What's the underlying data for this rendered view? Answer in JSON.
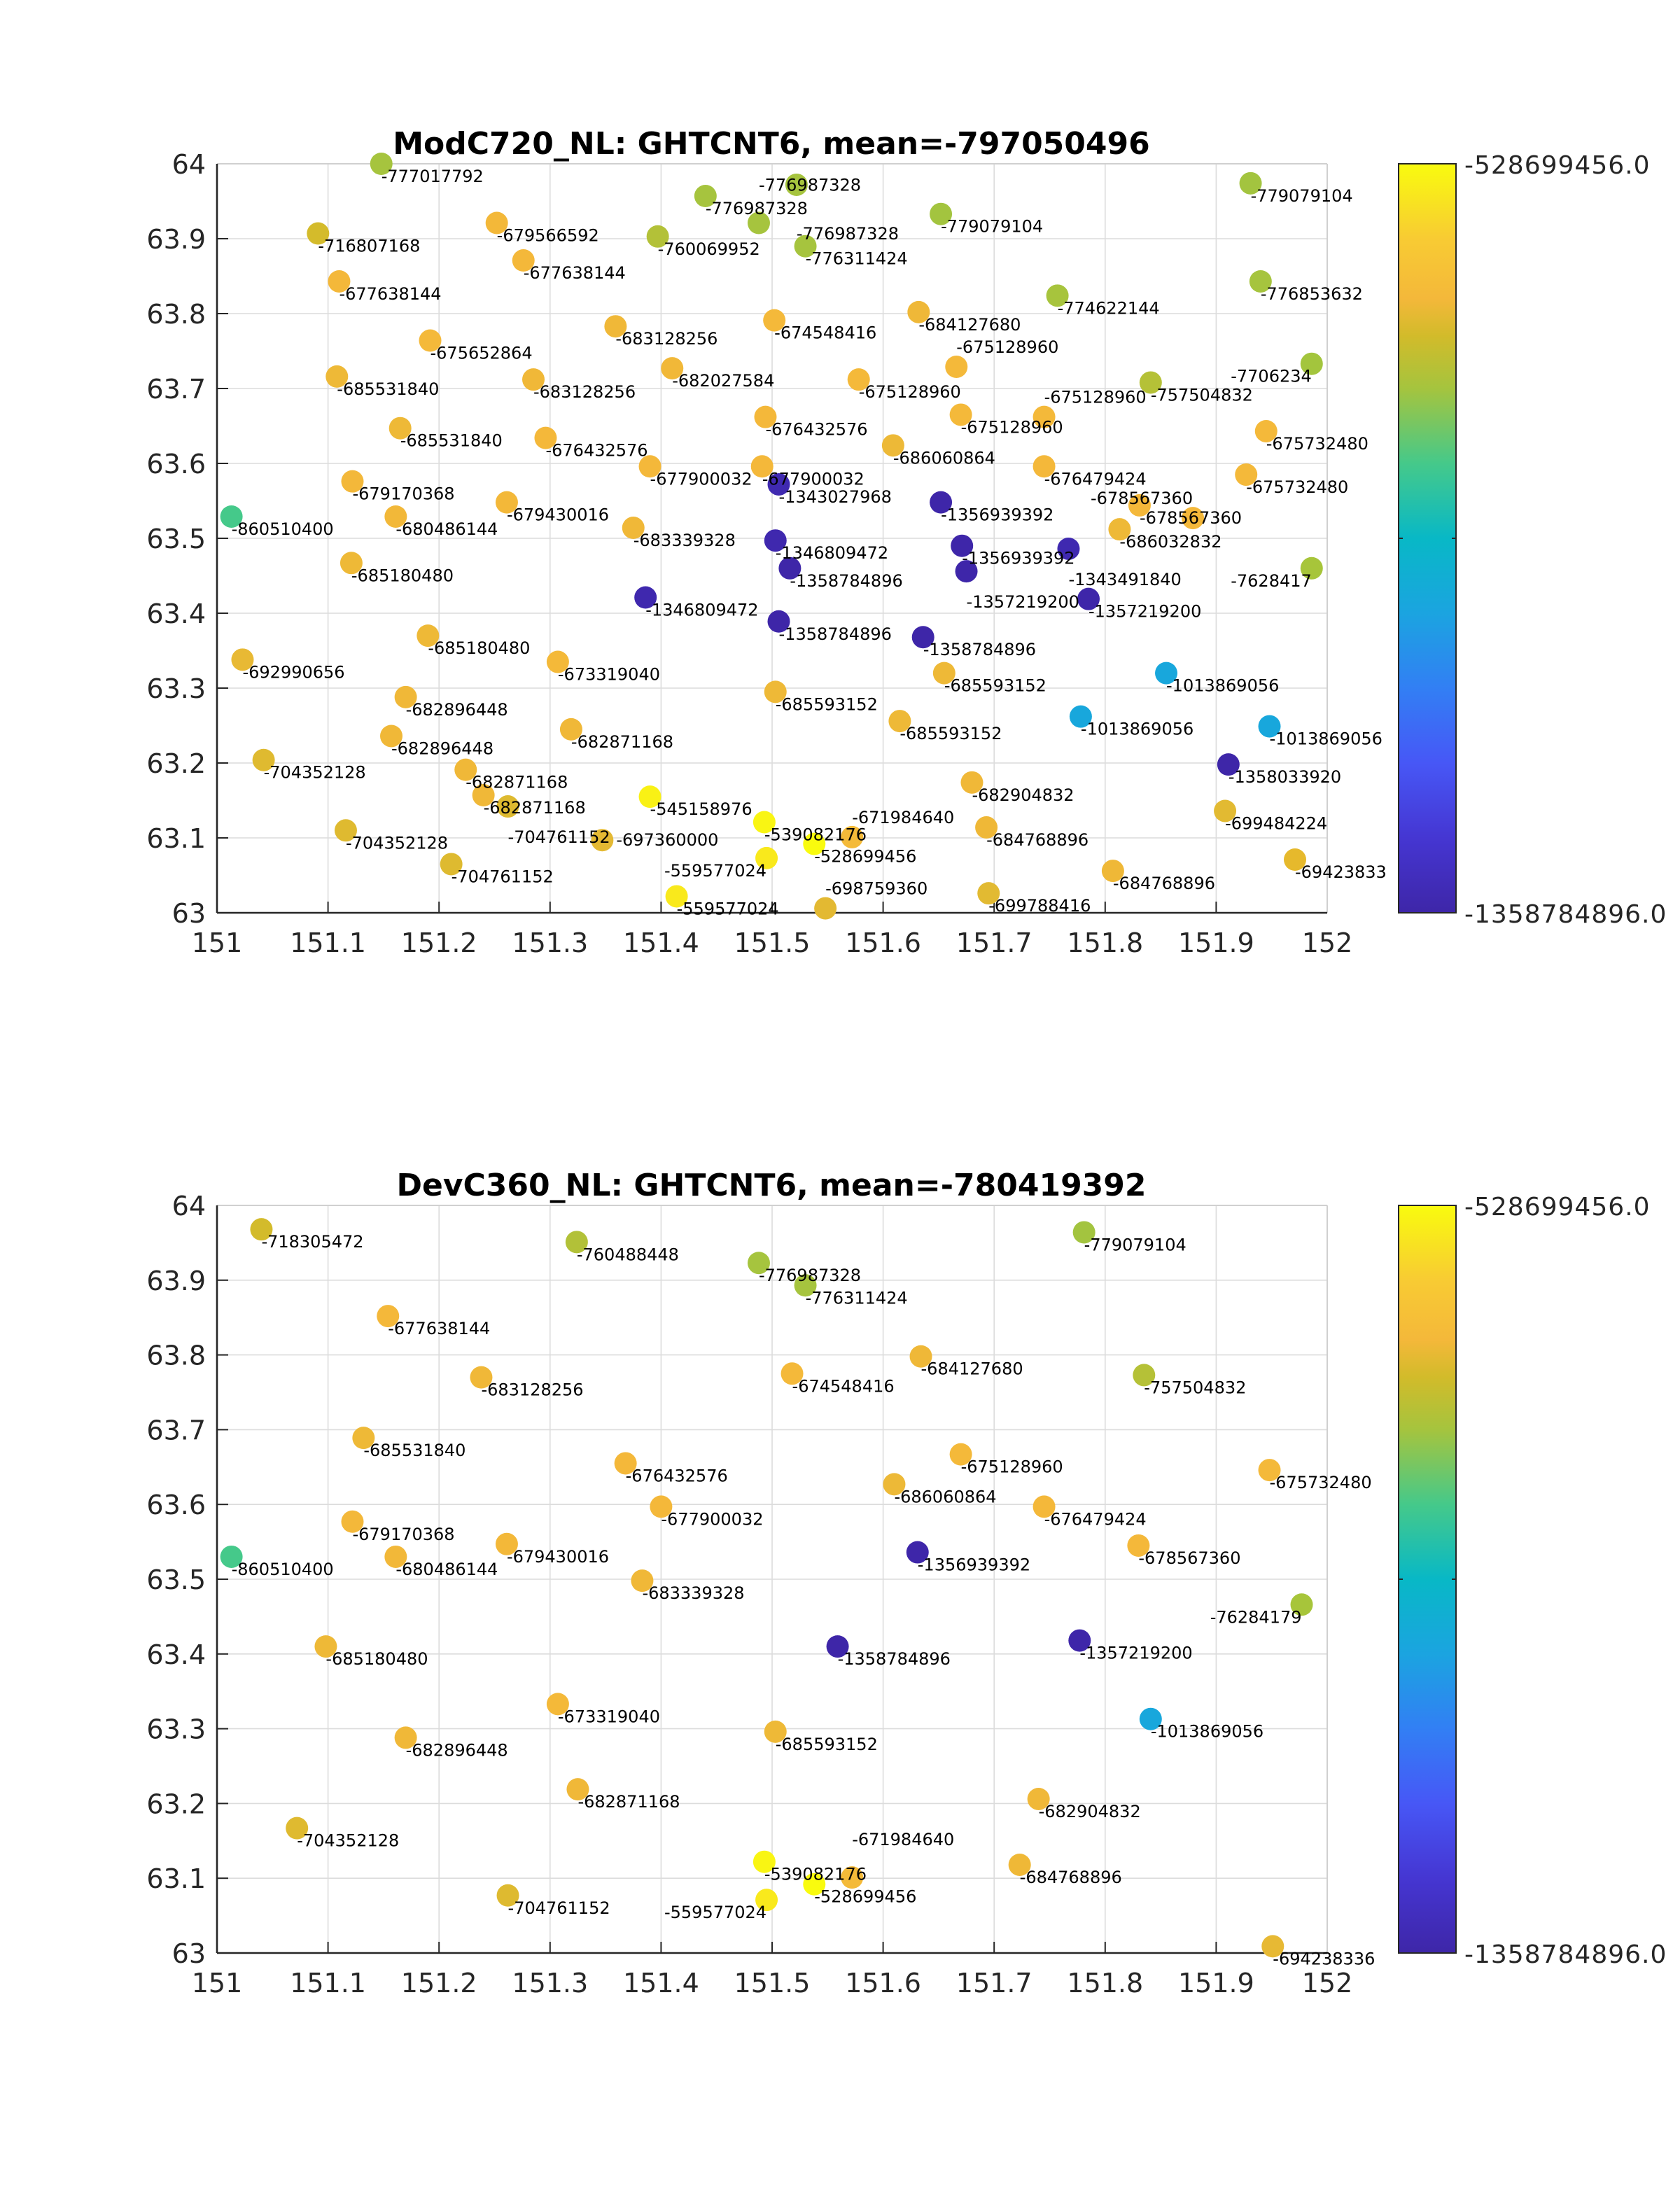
{
  "chart_data": [
    {
      "type": "scatter",
      "title": "ModC720_NL: GHTCNT6,  mean=-797050496",
      "xlim": [
        151,
        152
      ],
      "ylim": [
        63,
        64
      ],
      "xticks": [
        "151",
        "151.1",
        "151.2",
        "151.3",
        "151.4",
        "151.5",
        "151.6",
        "151.7",
        "151.8",
        "151.9",
        "152"
      ],
      "yticks": [
        "63",
        "63.1",
        "63.2",
        "63.3",
        "63.4",
        "63.5",
        "63.6",
        "63.7",
        "63.8",
        "63.9",
        "64"
      ],
      "grid": true,
      "colormap": "parula",
      "colorbar": {
        "min": -1358784896,
        "max": -528699456,
        "min_label": "-1358784896.0",
        "max_label": "-528699456.0"
      },
      "points": [
        {
          "x": 151.148,
          "y": 64.0,
          "value": -777017792,
          "label": "-777017792"
        },
        {
          "x": 151.091,
          "y": 63.907,
          "value": -716807168,
          "label": "-716807168"
        },
        {
          "x": 151.11,
          "y": 63.843,
          "value": -677638144,
          "label": "-677638144"
        },
        {
          "x": 151.252,
          "y": 63.921,
          "value": -679566592,
          "label": "-679566592"
        },
        {
          "x": 151.276,
          "y": 63.871,
          "value": -677638144,
          "label": "-677638144"
        },
        {
          "x": 151.397,
          "y": 63.903,
          "value": -760069952,
          "label": "-760069952"
        },
        {
          "x": 151.44,
          "y": 63.957,
          "value": -776987328,
          "label": "-776987328"
        },
        {
          "x": 151.488,
          "y": 63.921,
          "value": -776987328,
          "label": "-776987328"
        },
        {
          "x": 151.522,
          "y": 63.972,
          "value": -776987328,
          "label": "-776987328"
        },
        {
          "x": 151.53,
          "y": 63.89,
          "value": -776311424,
          "label": "-776311424"
        },
        {
          "x": 151.652,
          "y": 63.933,
          "value": -779079104,
          "label": "-779079104"
        },
        {
          "x": 151.931,
          "y": 63.974,
          "value": -779079104,
          "label": "-779079104"
        },
        {
          "x": 151.94,
          "y": 63.843,
          "value": -776853632,
          "label": "-776853632"
        },
        {
          "x": 151.757,
          "y": 63.824,
          "value": -774622144,
          "label": "-774622144"
        },
        {
          "x": 151.192,
          "y": 63.764,
          "value": -675652864,
          "label": "-675652864"
        },
        {
          "x": 151.359,
          "y": 63.783,
          "value": -683128256,
          "label": "-683128256"
        },
        {
          "x": 151.502,
          "y": 63.791,
          "value": -674548416,
          "label": "-674548416"
        },
        {
          "x": 151.632,
          "y": 63.802,
          "value": -684127680,
          "label": "-684127680"
        },
        {
          "x": 151.108,
          "y": 63.716,
          "value": -685531840,
          "label": "-685531840"
        },
        {
          "x": 151.285,
          "y": 63.712,
          "value": -683128256,
          "label": "-683128256"
        },
        {
          "x": 151.41,
          "y": 63.727,
          "value": -682027584,
          "label": "-682027584"
        },
        {
          "x": 151.578,
          "y": 63.712,
          "value": -675128960,
          "label": "-675128960"
        },
        {
          "x": 151.666,
          "y": 63.729,
          "value": -675128960,
          "label": "-675128960"
        },
        {
          "x": 151.841,
          "y": 63.708,
          "value": -757504832,
          "label": "-757504832"
        },
        {
          "x": 151.986,
          "y": 63.733,
          "value": null,
          "color": "#a3c53d",
          "label": "-7706234"
        },
        {
          "x": 151.165,
          "y": 63.647,
          "value": -685531840,
          "label": "-685531840"
        },
        {
          "x": 151.296,
          "y": 63.634,
          "value": -676432576,
          "label": "-676432576"
        },
        {
          "x": 151.494,
          "y": 63.662,
          "value": -676432576,
          "label": "-676432576"
        },
        {
          "x": 151.67,
          "y": 63.665,
          "value": -675128960,
          "label": "-675128960"
        },
        {
          "x": 151.745,
          "y": 63.662,
          "value": -675128960,
          "label": "-675128960"
        },
        {
          "x": 151.609,
          "y": 63.624,
          "value": -686060864,
          "label": "-686060864"
        },
        {
          "x": 151.945,
          "y": 63.643,
          "value": -675732480,
          "label": "-675732480"
        },
        {
          "x": 151.122,
          "y": 63.576,
          "value": -679170368,
          "label": "-679170368"
        },
        {
          "x": 151.39,
          "y": 63.596,
          "value": -677900032,
          "label": "-677900032"
        },
        {
          "x": 151.491,
          "y": 63.596,
          "value": -677900032,
          "label": "-677900032"
        },
        {
          "x": 151.745,
          "y": 63.596,
          "value": -676479424,
          "label": "-676479424"
        },
        {
          "x": 151.927,
          "y": 63.585,
          "value": -675732480,
          "label": "-675732480"
        },
        {
          "x": 151.013,
          "y": 63.529,
          "value": -860510400,
          "label": "-860510400"
        },
        {
          "x": 151.161,
          "y": 63.529,
          "value": -680486144,
          "label": "-680486144"
        },
        {
          "x": 151.261,
          "y": 63.548,
          "value": -679430016,
          "label": "-679430016"
        },
        {
          "x": 151.375,
          "y": 63.514,
          "value": -683339328,
          "label": "-683339328"
        },
        {
          "x": 151.506,
          "y": 63.572,
          "value": -1343027968,
          "label": "-1343027968"
        },
        {
          "x": 151.652,
          "y": 63.548,
          "value": -1356939392,
          "label": "-1356939392"
        },
        {
          "x": 151.831,
          "y": 63.544,
          "value": -678567360,
          "label": "-678567360"
        },
        {
          "x": 151.879,
          "y": 63.527,
          "value": -678567360,
          "label": "-678567360"
        },
        {
          "x": 151.813,
          "y": 63.512,
          "value": -686032832,
          "label": "-686032832"
        },
        {
          "x": 151.503,
          "y": 63.497,
          "value": -1346809472,
          "label": "-1346809472"
        },
        {
          "x": 151.671,
          "y": 63.49,
          "value": -1356939392,
          "label": "-1356939392"
        },
        {
          "x": 151.767,
          "y": 63.486,
          "value": -1343491840,
          "label": "-1343491840"
        },
        {
          "x": 151.516,
          "y": 63.46,
          "value": -1358784896,
          "label": "-1358784896"
        },
        {
          "x": 151.675,
          "y": 63.456,
          "value": -1357219200,
          "label": "-1357219200"
        },
        {
          "x": 151.785,
          "y": 63.419,
          "value": -1357219200,
          "label": "-1357219200"
        },
        {
          "x": 151.986,
          "y": 63.46,
          "value": null,
          "color": "#a7c53a",
          "label": "-7628417"
        },
        {
          "x": 151.121,
          "y": 63.467,
          "value": -685180480,
          "label": "-685180480"
        },
        {
          "x": 151.386,
          "y": 63.421,
          "value": -1346809472,
          "label": "-1346809472"
        },
        {
          "x": 151.506,
          "y": 63.389,
          "value": -1358784896,
          "label": "-1358784896"
        },
        {
          "x": 151.636,
          "y": 63.368,
          "value": -1358784896,
          "label": "-1358784896"
        },
        {
          "x": 151.19,
          "y": 63.37,
          "value": -685180480,
          "label": "-685180480"
        },
        {
          "x": 151.023,
          "y": 63.338,
          "value": -692990656,
          "label": "-692990656"
        },
        {
          "x": 151.307,
          "y": 63.335,
          "value": -673319040,
          "label": "-673319040"
        },
        {
          "x": 151.17,
          "y": 63.288,
          "value": -682896448,
          "label": "-682896448"
        },
        {
          "x": 151.503,
          "y": 63.295,
          "value": -685593152,
          "label": "-685593152"
        },
        {
          "x": 151.655,
          "y": 63.32,
          "value": -685593152,
          "label": "-685593152"
        },
        {
          "x": 151.855,
          "y": 63.32,
          "value": -1013869056,
          "label": "-1013869056"
        },
        {
          "x": 151.157,
          "y": 63.236,
          "value": -682896448,
          "label": "-682896448"
        },
        {
          "x": 151.319,
          "y": 63.245,
          "value": -682871168,
          "label": "-682871168"
        },
        {
          "x": 151.615,
          "y": 63.256,
          "value": -685593152,
          "label": "-685593152"
        },
        {
          "x": 151.778,
          "y": 63.262,
          "value": -1013869056,
          "label": "-1013869056"
        },
        {
          "x": 151.948,
          "y": 63.249,
          "value": -1013869056,
          "label": "-1013869056"
        },
        {
          "x": 151.042,
          "y": 63.204,
          "value": -704352128,
          "label": "-704352128"
        },
        {
          "x": 151.224,
          "y": 63.191,
          "value": -682871168,
          "label": "-682871168"
        },
        {
          "x": 151.24,
          "y": 63.157,
          "value": -682871168,
          "label": "-682871168"
        },
        {
          "x": 151.262,
          "y": 63.142,
          "value": -704761152,
          "label": "-704761152"
        },
        {
          "x": 151.39,
          "y": 63.155,
          "value": -545158976,
          "label": "-545158976"
        },
        {
          "x": 151.493,
          "y": 63.121,
          "value": -539082176,
          "label": "-539082176"
        },
        {
          "x": 151.538,
          "y": 63.092,
          "value": -528699456,
          "label": "-528699456"
        },
        {
          "x": 151.572,
          "y": 63.101,
          "value": -671984640,
          "label": "-671984640"
        },
        {
          "x": 151.495,
          "y": 63.073,
          "value": -559577024,
          "label": "-559577024"
        },
        {
          "x": 151.414,
          "y": 63.022,
          "value": -559577024,
          "label": "-559577024"
        },
        {
          "x": 151.548,
          "y": 63.006,
          "value": -698759360,
          "label": "-698759360"
        },
        {
          "x": 151.116,
          "y": 63.11,
          "value": -704352128,
          "label": "-704352128"
        },
        {
          "x": 151.211,
          "y": 63.065,
          "value": -704761152,
          "label": "-704761152"
        },
        {
          "x": 151.347,
          "y": 63.097,
          "value": -697360000,
          "label": "-697360000"
        },
        {
          "x": 151.68,
          "y": 63.174,
          "value": -682904832,
          "label": "-682904832"
        },
        {
          "x": 151.693,
          "y": 63.114,
          "value": -684768896,
          "label": "-684768896"
        },
        {
          "x": 151.695,
          "y": 63.026,
          "value": -699788416,
          "label": "-699788416"
        },
        {
          "x": 151.807,
          "y": 63.056,
          "value": -684768896,
          "label": "-684768896"
        },
        {
          "x": 151.911,
          "y": 63.198,
          "value": -1358033920,
          "label": "-1358033920"
        },
        {
          "x": 151.908,
          "y": 63.136,
          "value": -699484224,
          "label": "-699484224"
        },
        {
          "x": 151.971,
          "y": 63.071,
          "value": null,
          "color": "#e6b92c",
          "label": "-69423833"
        }
      ]
    },
    {
      "type": "scatter",
      "title": "DevC360_NL: GHTCNT6,  mean=-780419392",
      "xlim": [
        151,
        152
      ],
      "ylim": [
        63,
        64
      ],
      "xticks": [
        "151",
        "151.1",
        "151.2",
        "151.3",
        "151.4",
        "151.5",
        "151.6",
        "151.7",
        "151.8",
        "151.9",
        "152"
      ],
      "yticks": [
        "63",
        "63.1",
        "63.2",
        "63.3",
        "63.4",
        "63.5",
        "63.6",
        "63.7",
        "63.8",
        "63.9",
        "64"
      ],
      "grid": true,
      "colormap": "parula",
      "colorbar": {
        "min": -1358784896,
        "max": -528699456,
        "min_label": "-1358784896.0",
        "max_label": "-528699456.0"
      },
      "points": [
        {
          "x": 151.04,
          "y": 63.968,
          "value": -718305472,
          "label": "-718305472"
        },
        {
          "x": 151.324,
          "y": 63.951,
          "value": -760488448,
          "label": "-760488448"
        },
        {
          "x": 151.488,
          "y": 63.923,
          "value": -776987328,
          "label": "-776987328"
        },
        {
          "x": 151.53,
          "y": 63.893,
          "value": -776311424,
          "label": "-776311424"
        },
        {
          "x": 151.781,
          "y": 63.964,
          "value": -779079104,
          "label": "-779079104"
        },
        {
          "x": 151.154,
          "y": 63.852,
          "value": -677638144,
          "label": "-677638144"
        },
        {
          "x": 151.238,
          "y": 63.77,
          "value": -683128256,
          "label": "-683128256"
        },
        {
          "x": 151.518,
          "y": 63.775,
          "value": -674548416,
          "label": "-674548416"
        },
        {
          "x": 151.634,
          "y": 63.798,
          "value": -684127680,
          "label": "-684127680"
        },
        {
          "x": 151.835,
          "y": 63.773,
          "value": -757504832,
          "label": "-757504832"
        },
        {
          "x": 151.132,
          "y": 63.689,
          "value": -685531840,
          "label": "-685531840"
        },
        {
          "x": 151.368,
          "y": 63.655,
          "value": -676432576,
          "label": "-676432576"
        },
        {
          "x": 151.67,
          "y": 63.667,
          "value": -675128960,
          "label": "-675128960"
        },
        {
          "x": 151.948,
          "y": 63.646,
          "value": -675732480,
          "label": "-675732480"
        },
        {
          "x": 151.61,
          "y": 63.627,
          "value": -686060864,
          "label": "-686060864"
        },
        {
          "x": 151.4,
          "y": 63.597,
          "value": -677900032,
          "label": "-677900032"
        },
        {
          "x": 151.745,
          "y": 63.597,
          "value": -676479424,
          "label": "-676479424"
        },
        {
          "x": 151.122,
          "y": 63.577,
          "value": -679170368,
          "label": "-679170368"
        },
        {
          "x": 151.013,
          "y": 63.53,
          "value": -860510400,
          "label": "-860510400"
        },
        {
          "x": 151.161,
          "y": 63.53,
          "value": -680486144,
          "label": "-680486144"
        },
        {
          "x": 151.261,
          "y": 63.547,
          "value": -679430016,
          "label": "-679430016"
        },
        {
          "x": 151.631,
          "y": 63.536,
          "value": -1356939392,
          "label": "-1356939392"
        },
        {
          "x": 151.83,
          "y": 63.545,
          "value": -678567360,
          "label": "-678567360"
        },
        {
          "x": 151.383,
          "y": 63.498,
          "value": -683339328,
          "label": "-683339328"
        },
        {
          "x": 151.977,
          "y": 63.466,
          "value": null,
          "color": "#a7c53a",
          "label": "-76284179"
        },
        {
          "x": 151.098,
          "y": 63.41,
          "value": -685180480,
          "label": "-685180480"
        },
        {
          "x": 151.559,
          "y": 63.41,
          "value": -1358784896,
          "label": "-1358784896"
        },
        {
          "x": 151.777,
          "y": 63.418,
          "value": -1357219200,
          "label": "-1357219200"
        },
        {
          "x": 151.307,
          "y": 63.333,
          "value": -673319040,
          "label": "-673319040"
        },
        {
          "x": 151.841,
          "y": 63.313,
          "value": -1013869056,
          "label": "-1013869056"
        },
        {
          "x": 151.17,
          "y": 63.288,
          "value": -682896448,
          "label": "-682896448"
        },
        {
          "x": 151.503,
          "y": 63.296,
          "value": -685593152,
          "label": "-685593152"
        },
        {
          "x": 151.325,
          "y": 63.219,
          "value": -682871168,
          "label": "-682871168"
        },
        {
          "x": 151.74,
          "y": 63.206,
          "value": -682904832,
          "label": "-682904832"
        },
        {
          "x": 151.072,
          "y": 63.167,
          "value": -704352128,
          "label": "-704352128"
        },
        {
          "x": 151.493,
          "y": 63.122,
          "value": -539082176,
          "label": "-539082176"
        },
        {
          "x": 151.538,
          "y": 63.092,
          "value": -528699456,
          "label": "-528699456"
        },
        {
          "x": 151.572,
          "y": 63.101,
          "value": -671984640,
          "label": "-671984640"
        },
        {
          "x": 151.723,
          "y": 63.118,
          "value": -684768896,
          "label": "-684768896"
        },
        {
          "x": 151.495,
          "y": 63.071,
          "value": -559577024,
          "label": "-559577024"
        },
        {
          "x": 151.262,
          "y": 63.077,
          "value": -704761152,
          "label": "-704761152"
        },
        {
          "x": 151.951,
          "y": 63.009,
          "value": -694238336,
          "label": "-694238336"
        }
      ]
    }
  ]
}
